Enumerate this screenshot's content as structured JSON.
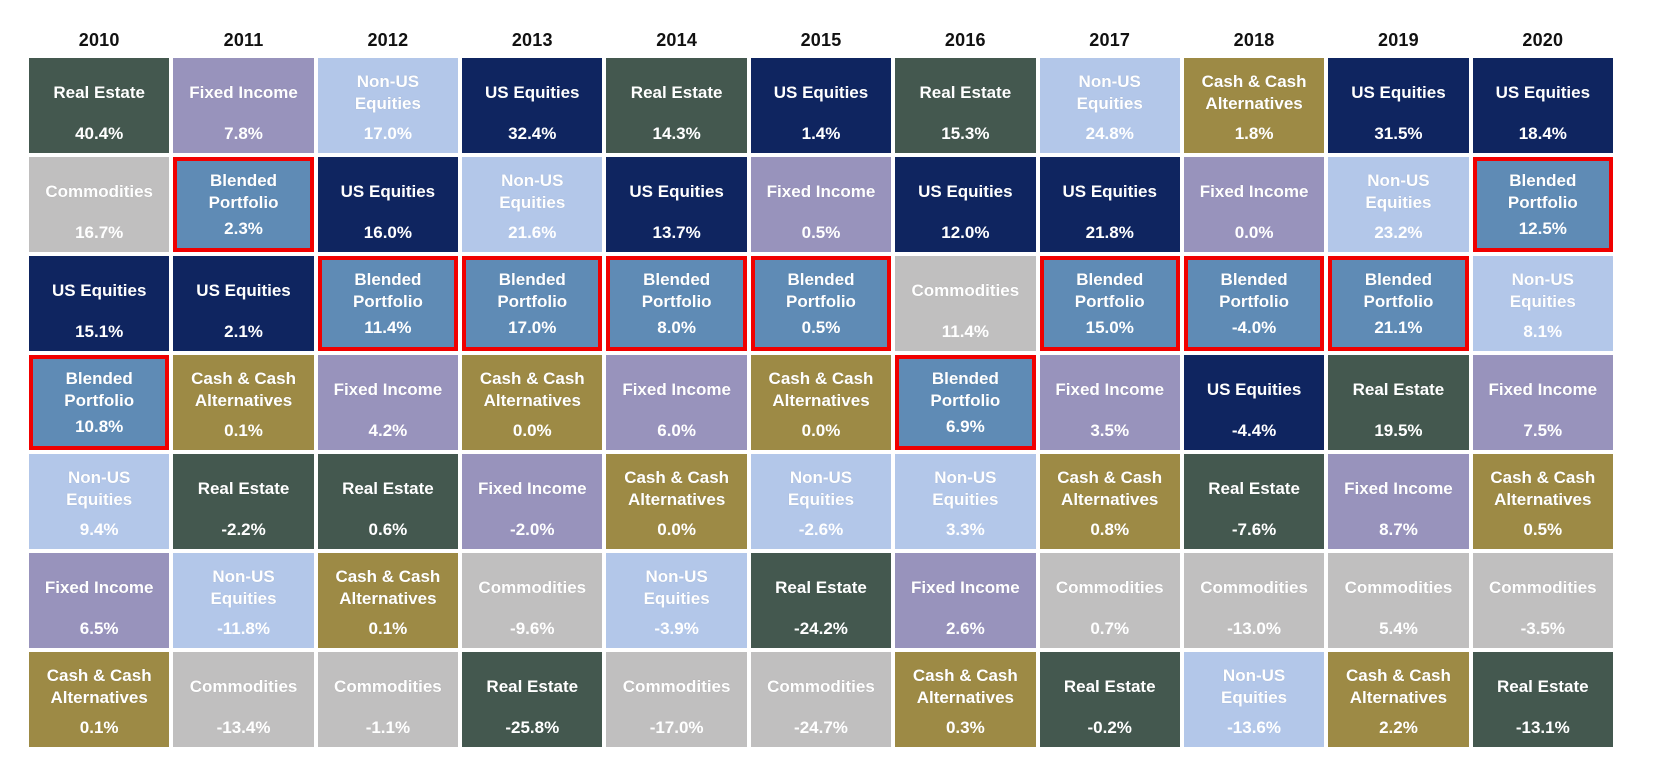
{
  "colors": {
    "Real Estate": "#44584F",
    "Fixed Income": "#9893BC",
    "Non-US Equities": "#B3C7E9",
    "US Equities": "#0F2560",
    "Commodities": "#C0BFBF",
    "Cash & Cash Alternatives": "#9D8A45",
    "Blended Portfolio": "#5F8BB5",
    "highlight_border": "#F00000",
    "cell_text": "#FFFFFF",
    "header_text": "#111111"
  },
  "chart_data": {
    "type": "table",
    "title": "",
    "columns": [
      "2010",
      "2011",
      "2012",
      "2013",
      "2014",
      "2015",
      "2016",
      "2017",
      "2018",
      "2019",
      "2020"
    ],
    "rank_rows": 7,
    "legend_note_highlight": "Blended Portfolio cells outlined in red",
    "years": [
      {
        "year": "2010",
        "ranked": [
          {
            "label": "Real Estate",
            "value": "40.4%",
            "highlight": false
          },
          {
            "label": "Commodities",
            "value": "16.7%",
            "highlight": false
          },
          {
            "label": "US Equities",
            "value": "15.1%",
            "highlight": false
          },
          {
            "label": "Blended Portfolio",
            "value": "10.8%",
            "highlight": true
          },
          {
            "label": "Non-US Equities",
            "value": "9.4%",
            "highlight": false
          },
          {
            "label": "Fixed Income",
            "value": "6.5%",
            "highlight": false
          },
          {
            "label": "Cash & Cash Alternatives",
            "value": "0.1%",
            "highlight": false
          }
        ]
      },
      {
        "year": "2011",
        "ranked": [
          {
            "label": "Fixed Income",
            "value": "7.8%",
            "highlight": false
          },
          {
            "label": "Blended Portfolio",
            "value": "2.3%",
            "highlight": true
          },
          {
            "label": "US Equities",
            "value": "2.1%",
            "highlight": false
          },
          {
            "label": "Cash & Cash Alternatives",
            "value": "0.1%",
            "highlight": false
          },
          {
            "label": "Real Estate",
            "value": "-2.2%",
            "highlight": false
          },
          {
            "label": "Non-US Equities",
            "value": "-11.8%",
            "highlight": false
          },
          {
            "label": "Commodities",
            "value": "-13.4%",
            "highlight": false
          }
        ]
      },
      {
        "year": "2012",
        "ranked": [
          {
            "label": "Non-US Equities",
            "value": "17.0%",
            "highlight": false
          },
          {
            "label": "US Equities",
            "value": "16.0%",
            "highlight": false
          },
          {
            "label": "Blended Portfolio",
            "value": "11.4%",
            "highlight": true
          },
          {
            "label": "Fixed Income",
            "value": "4.2%",
            "highlight": false
          },
          {
            "label": "Real Estate",
            "value": "0.6%",
            "highlight": false
          },
          {
            "label": "Cash & Cash Alternatives",
            "value": "0.1%",
            "highlight": false
          },
          {
            "label": "Commodities",
            "value": "-1.1%",
            "highlight": false
          }
        ]
      },
      {
        "year": "2013",
        "ranked": [
          {
            "label": "US Equities",
            "value": "32.4%",
            "highlight": false
          },
          {
            "label": "Non-US Equities",
            "value": "21.6%",
            "highlight": false
          },
          {
            "label": "Blended Portfolio",
            "value": "17.0%",
            "highlight": true
          },
          {
            "label": "Cash & Cash Alternatives",
            "value": "0.0%",
            "highlight": false
          },
          {
            "label": "Fixed Income",
            "value": "-2.0%",
            "highlight": false
          },
          {
            "label": "Commodities",
            "value": "-9.6%",
            "highlight": false
          },
          {
            "label": "Real Estate",
            "value": "-25.8%",
            "highlight": false
          }
        ]
      },
      {
        "year": "2014",
        "ranked": [
          {
            "label": "Real Estate",
            "value": "14.3%",
            "highlight": false
          },
          {
            "label": "US Equities",
            "value": "13.7%",
            "highlight": false
          },
          {
            "label": "Blended Portfolio",
            "value": "8.0%",
            "highlight": true
          },
          {
            "label": "Fixed Income",
            "value": "6.0%",
            "highlight": false
          },
          {
            "label": "Cash & Cash Alternatives",
            "value": "0.0%",
            "highlight": false
          },
          {
            "label": "Non-US Equities",
            "value": "-3.9%",
            "highlight": false
          },
          {
            "label": "Commodities",
            "value": "-17.0%",
            "highlight": false
          }
        ]
      },
      {
        "year": "2015",
        "ranked": [
          {
            "label": "US Equities",
            "value": "1.4%",
            "highlight": false
          },
          {
            "label": "Fixed Income",
            "value": "0.5%",
            "highlight": false
          },
          {
            "label": "Blended Portfolio",
            "value": "0.5%",
            "highlight": true
          },
          {
            "label": "Cash & Cash Alternatives",
            "value": "0.0%",
            "highlight": false
          },
          {
            "label": "Non-US Equities",
            "value": "-2.6%",
            "highlight": false
          },
          {
            "label": "Real Estate",
            "value": "-24.2%",
            "highlight": false
          },
          {
            "label": "Commodities",
            "value": "-24.7%",
            "highlight": false
          }
        ]
      },
      {
        "year": "2016",
        "ranked": [
          {
            "label": "Real Estate",
            "value": "15.3%",
            "highlight": false
          },
          {
            "label": "US Equities",
            "value": "12.0%",
            "highlight": false
          },
          {
            "label": "Commodities",
            "value": "11.4%",
            "highlight": false
          },
          {
            "label": "Blended Portfolio",
            "value": "6.9%",
            "highlight": true
          },
          {
            "label": "Non-US Equities",
            "value": "3.3%",
            "highlight": false
          },
          {
            "label": "Fixed Income",
            "value": "2.6%",
            "highlight": false
          },
          {
            "label": "Cash & Cash Alternatives",
            "value": "0.3%",
            "highlight": false
          }
        ]
      },
      {
        "year": "2017",
        "ranked": [
          {
            "label": "Non-US Equities",
            "value": "24.8%",
            "highlight": false
          },
          {
            "label": "US Equities",
            "value": "21.8%",
            "highlight": false
          },
          {
            "label": "Blended Portfolio",
            "value": "15.0%",
            "highlight": true
          },
          {
            "label": "Fixed Income",
            "value": "3.5%",
            "highlight": false
          },
          {
            "label": "Cash & Cash Alternatives",
            "value": "0.8%",
            "highlight": false
          },
          {
            "label": "Commodities",
            "value": "0.7%",
            "highlight": false
          },
          {
            "label": "Real Estate",
            "value": "-0.2%",
            "highlight": false
          }
        ]
      },
      {
        "year": "2018",
        "ranked": [
          {
            "label": "Cash & Cash Alternatives",
            "value": "1.8%",
            "highlight": false
          },
          {
            "label": "Fixed Income",
            "value": "0.0%",
            "highlight": false
          },
          {
            "label": "Blended Portfolio",
            "value": "-4.0%",
            "highlight": true
          },
          {
            "label": "US Equities",
            "value": "-4.4%",
            "highlight": false
          },
          {
            "label": "Real Estate",
            "value": "-7.6%",
            "highlight": false
          },
          {
            "label": "Commodities",
            "value": "-13.0%",
            "highlight": false
          },
          {
            "label": "Non-US Equities",
            "value": "-13.6%",
            "highlight": false
          }
        ]
      },
      {
        "year": "2019",
        "ranked": [
          {
            "label": "US Equities",
            "value": "31.5%",
            "highlight": false
          },
          {
            "label": "Non-US Equities",
            "value": "23.2%",
            "highlight": false
          },
          {
            "label": "Blended Portfolio",
            "value": "21.1%",
            "highlight": true
          },
          {
            "label": "Real Estate",
            "value": "19.5%",
            "highlight": false
          },
          {
            "label": "Fixed Income",
            "value": "8.7%",
            "highlight": false
          },
          {
            "label": "Commodities",
            "value": "5.4%",
            "highlight": false
          },
          {
            "label": "Cash & Cash Alternatives",
            "value": "2.2%",
            "highlight": false
          }
        ]
      },
      {
        "year": "2020",
        "ranked": [
          {
            "label": "US Equities",
            "value": "18.4%",
            "highlight": false
          },
          {
            "label": "Blended Portfolio",
            "value": "12.5%",
            "highlight": true
          },
          {
            "label": "Non-US Equities",
            "value": "8.1%",
            "highlight": false
          },
          {
            "label": "Fixed Income",
            "value": "7.5%",
            "highlight": false
          },
          {
            "label": "Cash & Cash Alternatives",
            "value": "0.5%",
            "highlight": false
          },
          {
            "label": "Commodities",
            "value": "-3.5%",
            "highlight": false
          },
          {
            "label": "Real Estate",
            "value": "-13.1%",
            "highlight": false
          }
        ]
      }
    ]
  }
}
